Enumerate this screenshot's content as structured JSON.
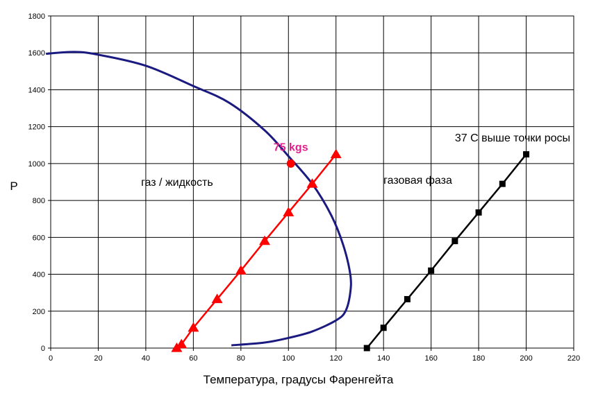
{
  "chart_data": {
    "type": "line",
    "xlabel": "Температура, градусы Фаренгейта",
    "ylabel": "P",
    "xlim": [
      0,
      220
    ],
    "ylim": [
      0,
      1800
    ],
    "xticks": [
      0,
      20,
      40,
      60,
      80,
      100,
      120,
      140,
      160,
      180,
      200,
      220
    ],
    "yticks": [
      0,
      200,
      400,
      600,
      800,
      1000,
      1200,
      1400,
      1600,
      1800
    ],
    "grid": true,
    "series": [
      {
        "key": "phase-envelope",
        "color": "#1a1a80",
        "marker": "none",
        "x": [
          -2,
          10,
          20,
          40,
          60,
          75,
          90,
          100,
          110,
          118,
          123,
          126,
          126,
          124,
          120,
          110,
          100,
          90,
          76
        ],
        "y": [
          1595,
          1605,
          1590,
          1530,
          1420,
          1330,
          1180,
          1040,
          890,
          720,
          560,
          400,
          300,
          200,
          150,
          90,
          55,
          30,
          15
        ]
      },
      {
        "key": "red-line",
        "color": "#ff0000",
        "marker": "triangle",
        "x": [
          53,
          55,
          60,
          70,
          80,
          90,
          100,
          110,
          120
        ],
        "y": [
          0,
          20,
          110,
          265,
          420,
          580,
          735,
          890,
          1050
        ]
      },
      {
        "key": "black-line",
        "color": "#000000",
        "marker": "square",
        "x": [
          133,
          140,
          150,
          160,
          170,
          180,
          190,
          200
        ],
        "y": [
          0,
          110,
          265,
          420,
          580,
          735,
          890,
          1050
        ]
      }
    ],
    "point": {
      "x": 101,
      "y": 1000,
      "color": "#ff0000"
    },
    "annotations": [
      {
        "key": "annot-gas-liquid",
        "text": "газ / жидкость",
        "x": 38,
        "y": 880,
        "color": "#000000"
      },
      {
        "key": "annot-gas-phase",
        "text": "газовая фаза",
        "x": 140,
        "y": 890,
        "color": "#000000"
      },
      {
        "key": "annot-75kgs",
        "text": "75 kgs",
        "x": 101,
        "y": 1070,
        "color": "#e0208c"
      },
      {
        "key": "annot-dewpoint",
        "text": "37 С выше точки росы",
        "x": 170,
        "y": 1120,
        "color": "#000000"
      }
    ]
  }
}
